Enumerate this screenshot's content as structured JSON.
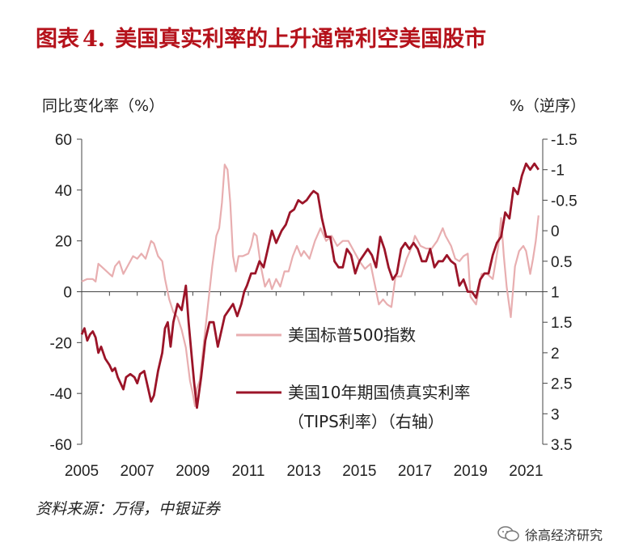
{
  "header": {
    "prefix": "图表",
    "number": "4.",
    "title": "美国真实利率的上升通常利空美国股市"
  },
  "chart_data": {
    "type": "line",
    "title": "美国真实利率的上升通常利空美国股市",
    "ylabel_left": "同比变化率（%）",
    "ylabel_right": "%（逆序）",
    "ylim_left": [
      -60,
      60
    ],
    "left_ticks": [
      "60",
      "40",
      "20",
      "0",
      "-20",
      "-40",
      "-60"
    ],
    "ylim_right": [
      3.5,
      -1.5
    ],
    "right_ticks": [
      "-1.5",
      "-1",
      "-0.5",
      "0",
      "0.5",
      "1",
      "1.5",
      "2",
      "2.5",
      "3",
      "3.5"
    ],
    "xlim": [
      2005,
      2021.6
    ],
    "x_ticks": [
      "2005",
      "2007",
      "2009",
      "2011",
      "2013",
      "2015",
      "2017",
      "2019",
      "2021"
    ],
    "series": [
      {
        "name": "美国标普500指数",
        "axis": "left",
        "color": "#e8aeb0",
        "x": [
          2005.0,
          2005.2,
          2005.4,
          2005.5,
          2005.6,
          2005.8,
          2006.0,
          2006.1,
          2006.2,
          2006.35,
          2006.5,
          2006.7,
          2006.85,
          2007.0,
          2007.15,
          2007.3,
          2007.5,
          2007.6,
          2007.75,
          2007.9,
          2008.0,
          2008.15,
          2008.3,
          2008.45,
          2008.6,
          2008.75,
          2008.9,
          2009.0,
          2009.08,
          2009.15,
          2009.25,
          2009.4,
          2009.55,
          2009.7,
          2009.85,
          2009.95,
          2010.05,
          2010.15,
          2010.25,
          2010.35,
          2010.45,
          2010.55,
          2010.65,
          2010.8,
          2011.0,
          2011.1,
          2011.2,
          2011.3,
          2011.45,
          2011.6,
          2011.75,
          2011.85,
          2012.0,
          2012.15,
          2012.3,
          2012.45,
          2012.6,
          2012.75,
          2012.9,
          2013.0,
          2013.2,
          2013.4,
          2013.6,
          2013.8,
          2014.0,
          2014.2,
          2014.4,
          2014.6,
          2014.8,
          2015.0,
          2015.2,
          2015.4,
          2015.55,
          2015.7,
          2015.85,
          2016.0,
          2016.15,
          2016.3,
          2016.5,
          2016.7,
          2016.9,
          2017.0,
          2017.2,
          2017.4,
          2017.6,
          2017.8,
          2018.0,
          2018.1,
          2018.3,
          2018.45,
          2018.6,
          2018.75,
          2018.9,
          2019.0,
          2019.2,
          2019.4,
          2019.6,
          2019.8,
          2020.0,
          2020.1,
          2020.2,
          2020.3,
          2020.45,
          2020.6,
          2020.75,
          2020.9,
          2021.0,
          2021.15,
          2021.25,
          2021.35,
          2021.45
        ],
        "values": [
          4,
          5,
          5,
          4,
          11,
          9,
          7,
          6,
          10,
          12,
          7,
          11,
          14,
          13,
          15,
          13,
          20,
          19,
          14,
          12,
          5,
          -3,
          -8,
          -10,
          -15,
          -22,
          -35,
          -40,
          -45,
          -38,
          -35,
          -20,
          -5,
          10,
          22,
          25,
          35,
          50,
          48,
          35,
          14,
          8,
          14,
          14,
          15,
          18,
          23,
          22,
          10,
          2,
          5,
          1,
          5,
          2,
          8,
          8,
          14,
          18,
          14,
          16,
          13,
          20,
          25,
          20,
          22,
          18,
          20,
          20,
          16,
          12,
          9,
          11,
          3,
          -5,
          -3,
          -5,
          -6,
          6,
          6,
          13,
          18,
          22,
          18,
          17,
          17,
          20,
          25,
          22,
          18,
          13,
          12,
          14,
          15,
          -2,
          -5,
          7,
          7,
          5,
          18,
          29,
          14,
          2,
          -10,
          10,
          16,
          18,
          16,
          7,
          13,
          20,
          30
        ]
      },
      {
        "name": "美国10年期国债真实利率",
        "legend_line2": "（TIPS利率）（右轴）",
        "axis": "right",
        "color": "#9b1428",
        "x": [
          2005.0,
          2005.1,
          2005.2,
          2005.3,
          2005.4,
          2005.5,
          2005.6,
          2005.7,
          2005.85,
          2006.0,
          2006.1,
          2006.2,
          2006.3,
          2006.4,
          2006.5,
          2006.6,
          2006.75,
          2006.9,
          2007.0,
          2007.1,
          2007.25,
          2007.4,
          2007.5,
          2007.6,
          2007.75,
          2007.9,
          2008.0,
          2008.1,
          2008.2,
          2008.3,
          2008.45,
          2008.6,
          2008.75,
          2008.85,
          2008.95,
          2009.05,
          2009.15,
          2009.3,
          2009.45,
          2009.6,
          2009.75,
          2009.9,
          2010.0,
          2010.15,
          2010.3,
          2010.45,
          2010.6,
          2010.75,
          2010.85,
          2010.95,
          2011.1,
          2011.25,
          2011.4,
          2011.55,
          2011.7,
          2011.85,
          2012.0,
          2012.2,
          2012.35,
          2012.5,
          2012.65,
          2012.8,
          2012.95,
          2013.1,
          2013.25,
          2013.35,
          2013.5,
          2013.65,
          2013.8,
          2013.95,
          2014.1,
          2014.25,
          2014.4,
          2014.55,
          2014.7,
          2014.85,
          2015.0,
          2015.15,
          2015.3,
          2015.45,
          2015.6,
          2015.75,
          2015.9,
          2016.05,
          2016.2,
          2016.35,
          2016.5,
          2016.65,
          2016.8,
          2016.95,
          2017.1,
          2017.25,
          2017.4,
          2017.55,
          2017.7,
          2017.85,
          2018.0,
          2018.15,
          2018.3,
          2018.45,
          2018.6,
          2018.75,
          2018.9,
          2019.05,
          2019.2,
          2019.35,
          2019.5,
          2019.65,
          2019.8,
          2019.95,
          2020.1,
          2020.25,
          2020.4,
          2020.55,
          2020.7,
          2020.85,
          2021.0,
          2021.15,
          2021.3,
          2021.45
        ],
        "values": [
          1.7,
          1.6,
          1.8,
          1.7,
          1.65,
          1.75,
          2.0,
          1.9,
          2.1,
          2.2,
          2.3,
          2.25,
          2.4,
          2.5,
          2.6,
          2.4,
          2.35,
          2.4,
          2.5,
          2.35,
          2.3,
          2.6,
          2.8,
          2.7,
          2.3,
          2.0,
          1.6,
          1.5,
          1.9,
          1.5,
          1.2,
          1.3,
          0.9,
          1.5,
          2.0,
          2.5,
          2.9,
          2.4,
          1.8,
          1.5,
          1.5,
          1.9,
          1.7,
          1.4,
          1.3,
          1.2,
          1.4,
          1.2,
          1.0,
          0.9,
          0.7,
          0.7,
          0.5,
          0.6,
          0.3,
          0.0,
          0.2,
          0.0,
          -0.1,
          -0.3,
          -0.35,
          -0.5,
          -0.45,
          -0.5,
          -0.6,
          -0.65,
          -0.6,
          -0.2,
          0.1,
          0.1,
          0.5,
          0.6,
          0.6,
          0.3,
          0.4,
          0.7,
          0.5,
          0.4,
          0.3,
          0.4,
          0.6,
          0.1,
          0.3,
          0.6,
          0.8,
          0.7,
          0.3,
          0.2,
          0.3,
          0.2,
          0.3,
          0.5,
          0.5,
          0.3,
          0.6,
          0.5,
          0.5,
          0.4,
          0.5,
          0.55,
          0.9,
          0.8,
          1.0,
          1.0,
          1.1,
          0.8,
          0.7,
          0.7,
          0.4,
          0.2,
          0.1,
          -0.3,
          -0.2,
          -0.7,
          -0.6,
          -0.9,
          -1.1,
          -1.0,
          -1.1,
          -1.0
        ]
      }
    ]
  },
  "source": "资料来源：万得，中银证券",
  "watermark": "徐高经济研究"
}
